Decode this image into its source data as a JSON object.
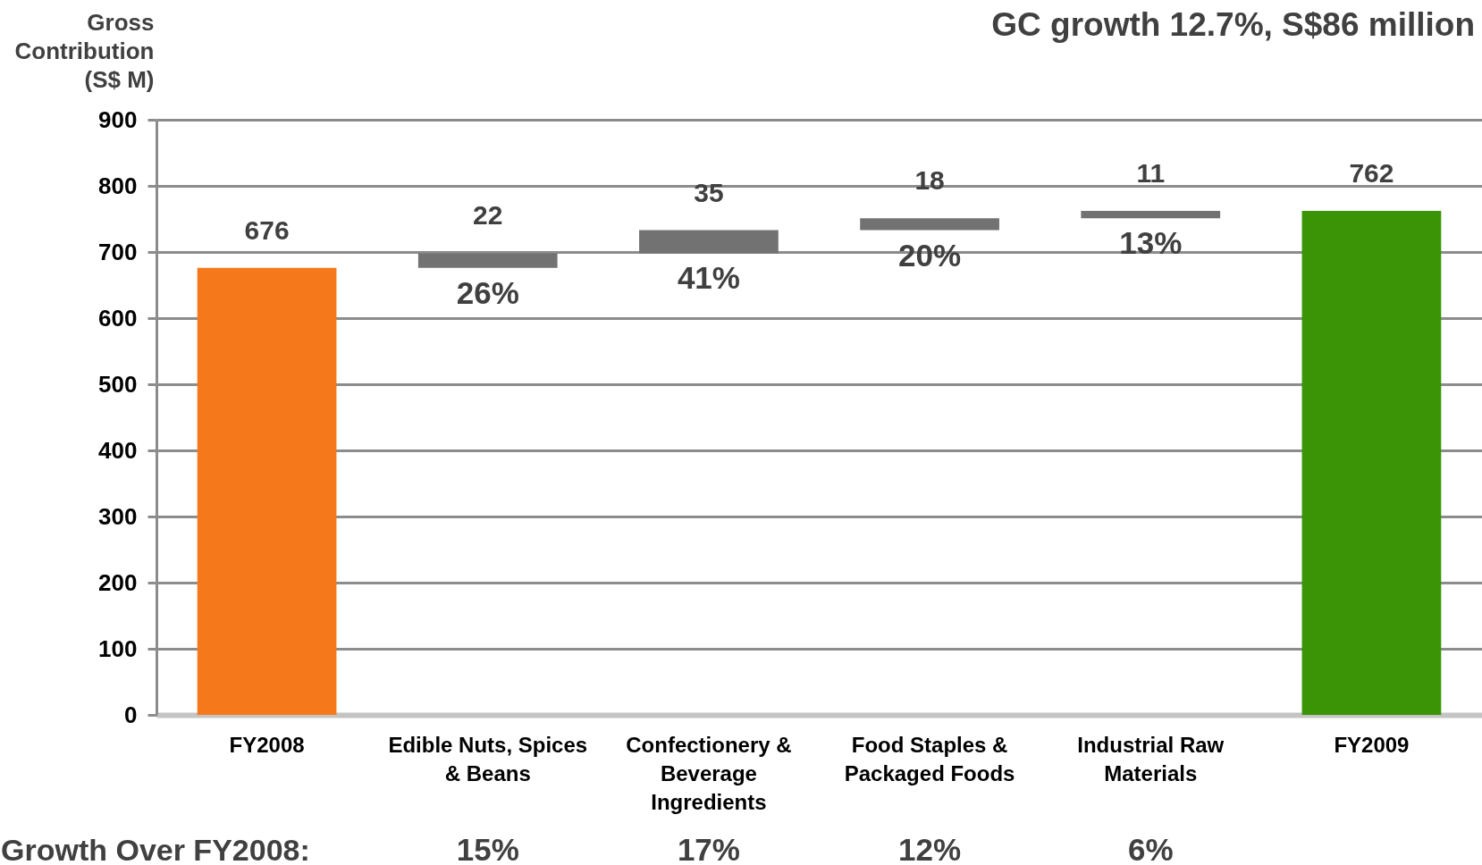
{
  "chart_data": {
    "type": "bar",
    "title": "GC growth 12.7%, S$86 million",
    "ylabel": "Gross Contribution (S$ M)",
    "categories": [
      "FY2008",
      "Edible Nuts, Spices & Beans",
      "Confectionery & Beverage Ingredients",
      "Food Staples & Packaged Foods",
      "Industrial Raw Materials",
      "FY2009"
    ],
    "values": [
      676,
      22,
      35,
      18,
      11,
      762
    ],
    "base": [
      0,
      676,
      698,
      733,
      751,
      0
    ],
    "colors": [
      "#f5791a",
      "#727272",
      "#727272",
      "#727272",
      "#727272",
      "#3a9406"
    ],
    "ylim": [
      0,
      900
    ],
    "yticks": [
      0,
      100,
      200,
      300,
      400,
      500,
      600,
      700,
      800,
      900
    ],
    "grid": "y",
    "data_labels": true,
    "annotations": [
      {
        "text": "26%",
        "x": "Edible Nuts, Spices & Beans",
        "y": 676
      },
      {
        "text": "41%",
        "x": "Confectionery & Beverage Ingredients",
        "y": 698
      },
      {
        "text": "20%",
        "x": "Food Staples & Packaged Foods",
        "y": 733
      },
      {
        "text": "13%",
        "x": "Industrial Raw Materials",
        "y": 751
      },
      "Growth Over FY2008:",
      "15%",
      "17%",
      "12%",
      "6%"
    ]
  }
}
